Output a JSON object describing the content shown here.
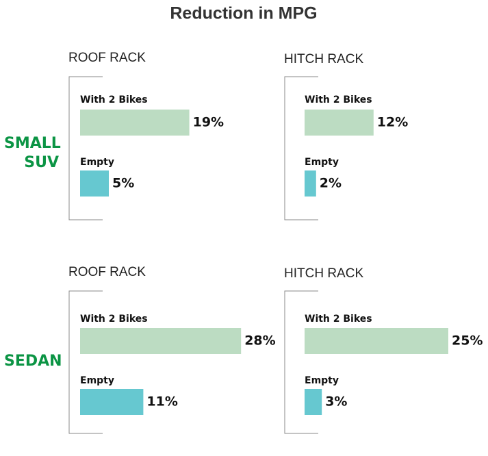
{
  "title": "Reduction in MPG",
  "row_labels": [
    "SMALL SUV",
    "SEDAN"
  ],
  "chart_data": [
    {
      "type": "bar",
      "title": "ROOF RACK",
      "categories": [
        "With 2 Bikes",
        "Empty"
      ],
      "values": [
        19,
        5
      ],
      "value_labels": [
        "19%",
        "5%"
      ],
      "colors": [
        "#bcdcc2",
        "#66c8d0"
      ]
    },
    {
      "type": "bar",
      "title": "HITCH RACK",
      "categories": [
        "With 2 Bikes",
        "Empty"
      ],
      "values": [
        12,
        2
      ],
      "value_labels": [
        "12%",
        "2%"
      ],
      "colors": [
        "#bcdcc2",
        "#66c8d0"
      ]
    },
    {
      "type": "bar",
      "title": "ROOF RACK",
      "categories": [
        "With 2 Bikes",
        "Empty"
      ],
      "values": [
        28,
        11
      ],
      "value_labels": [
        "28%",
        "11%"
      ],
      "colors": [
        "#bcdcc2",
        "#66c8d0"
      ]
    },
    {
      "type": "bar",
      "title": "HITCH RACK",
      "categories": [
        "With 2 Bikes",
        "Empty"
      ],
      "values": [
        25,
        3
      ],
      "value_labels": [
        "25%",
        "3%"
      ],
      "colors": [
        "#bcdcc2",
        "#66c8d0"
      ]
    }
  ]
}
